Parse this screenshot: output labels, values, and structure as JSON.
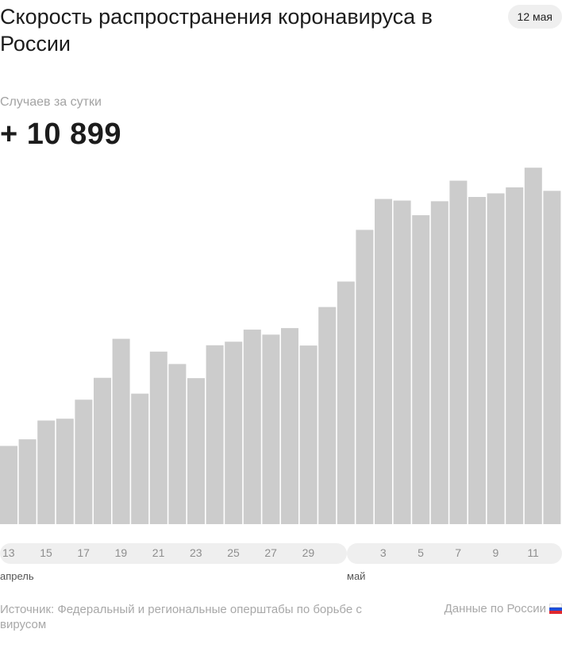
{
  "header": {
    "title": "Скорость распространения коронавируса в России",
    "date": "12 мая"
  },
  "stats": {
    "label": "Случаев за сутки",
    "value": "+ 10 899"
  },
  "axis": {
    "tick_labels": [
      "13",
      "15",
      "17",
      "19",
      "21",
      "23",
      "25",
      "27",
      "29",
      "3",
      "5",
      "7",
      "9",
      "11"
    ],
    "months": [
      "апрель",
      "май"
    ]
  },
  "footer": {
    "source": "Источник: Федеральный и региональные оперштабы по борьбе с вирусом",
    "data_link": "Данные по России"
  },
  "colors": {
    "bar": "#cccccc",
    "pill": "#efefef"
  },
  "chart_data": {
    "type": "bar",
    "categories": [
      "13 апреля",
      "14 апреля",
      "15 апреля",
      "16 апреля",
      "17 апреля",
      "18 апреля",
      "19 апреля",
      "20 апреля",
      "21 апреля",
      "22 апреля",
      "23 апреля",
      "24 апреля",
      "25 апреля",
      "26 апреля",
      "27 апреля",
      "28 апреля",
      "29 апреля",
      "30 апреля",
      "1 мая",
      "2 мая",
      "3 мая",
      "4 мая",
      "5 мая",
      "6 мая",
      "7 мая",
      "8 мая",
      "9 мая",
      "10 мая",
      "11 мая",
      "12 мая"
    ],
    "values": [
      2558,
      2774,
      3388,
      3448,
      4070,
      4785,
      6060,
      4268,
      5642,
      5236,
      4774,
      5849,
      5966,
      6361,
      6198,
      6411,
      5841,
      7099,
      7933,
      9623,
      10633,
      10581,
      10102,
      10559,
      11231,
      10699,
      10817,
      11012,
      11656,
      10899
    ],
    "ylim": [
      0,
      12000
    ]
  }
}
